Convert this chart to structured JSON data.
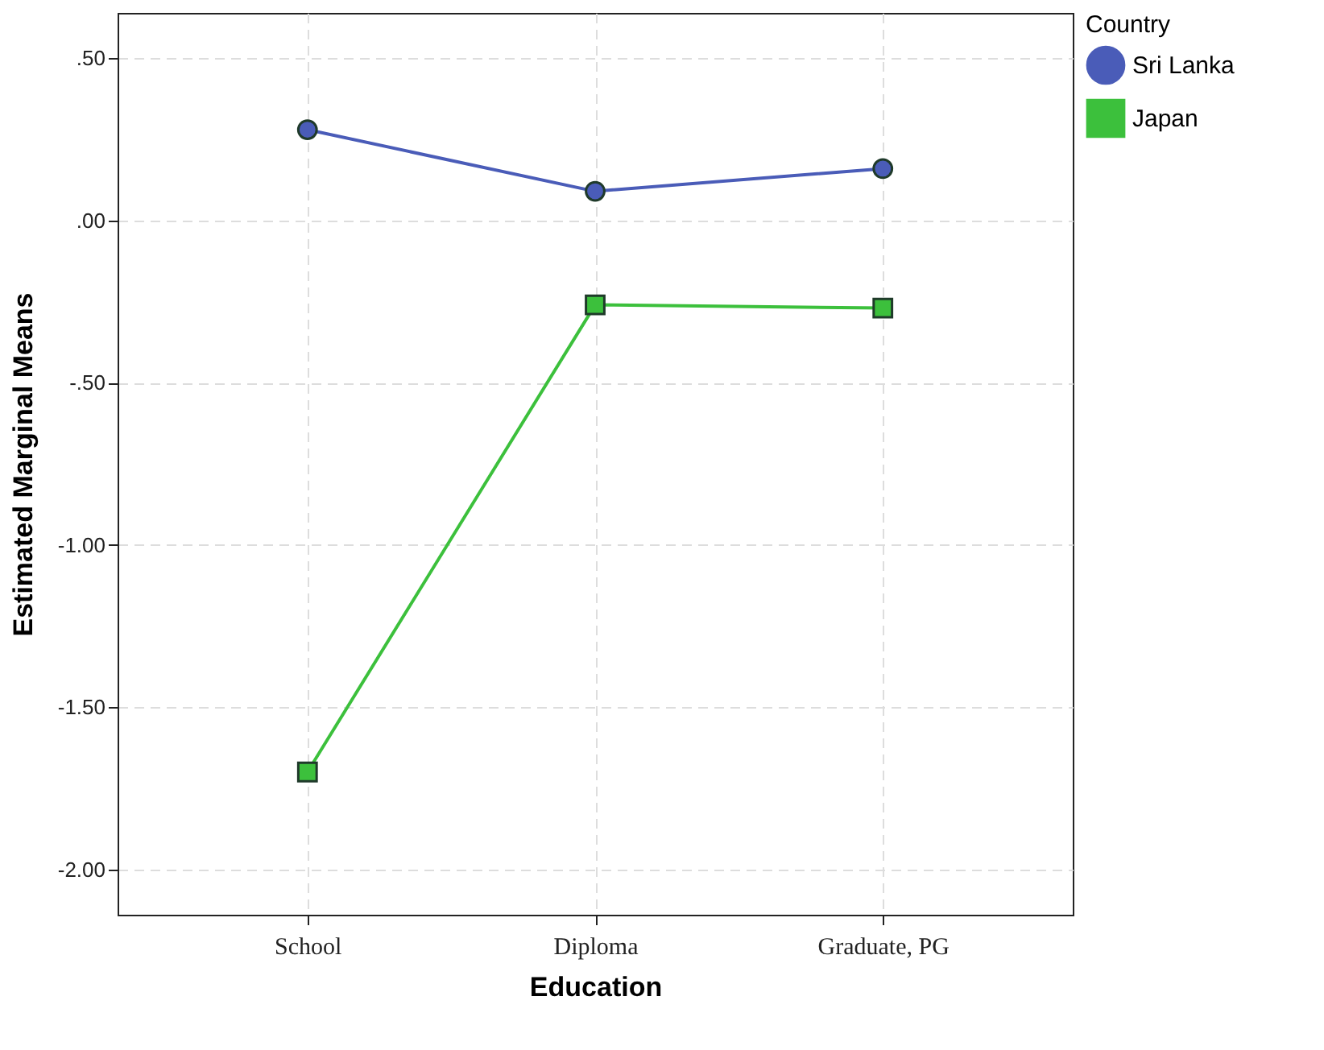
{
  "chart_data": {
    "type": "line",
    "xlabel": "Education",
    "ylabel": "Estimated Marginal Means",
    "legend_title": "Country",
    "categories": [
      "School",
      "Diploma",
      "Graduate, PG"
    ],
    "series": [
      {
        "name": "Sri Lanka",
        "color": "#4a5cb8",
        "values": [
          0.28,
          0.09,
          0.16
        ],
        "marker": "circle"
      },
      {
        "name": "Japan",
        "color": "#3cc03c",
        "values": [
          -1.7,
          -0.26,
          -0.27
        ],
        "marker": "square"
      }
    ],
    "ylim": [
      -2.14,
      0.64
    ],
    "yticks": [
      {
        "value": 0.5,
        "label": ".50"
      },
      {
        "value": 0,
        "label": ".00"
      },
      {
        "value": -0.5,
        "label": "-.50"
      },
      {
        "value": -1,
        "label": "-1.00"
      },
      {
        "value": -1.5,
        "label": "-1.50"
      },
      {
        "value": -2,
        "label": "-2.00"
      }
    ],
    "grid": true,
    "legend": "top right",
    "line_style": "solid"
  }
}
